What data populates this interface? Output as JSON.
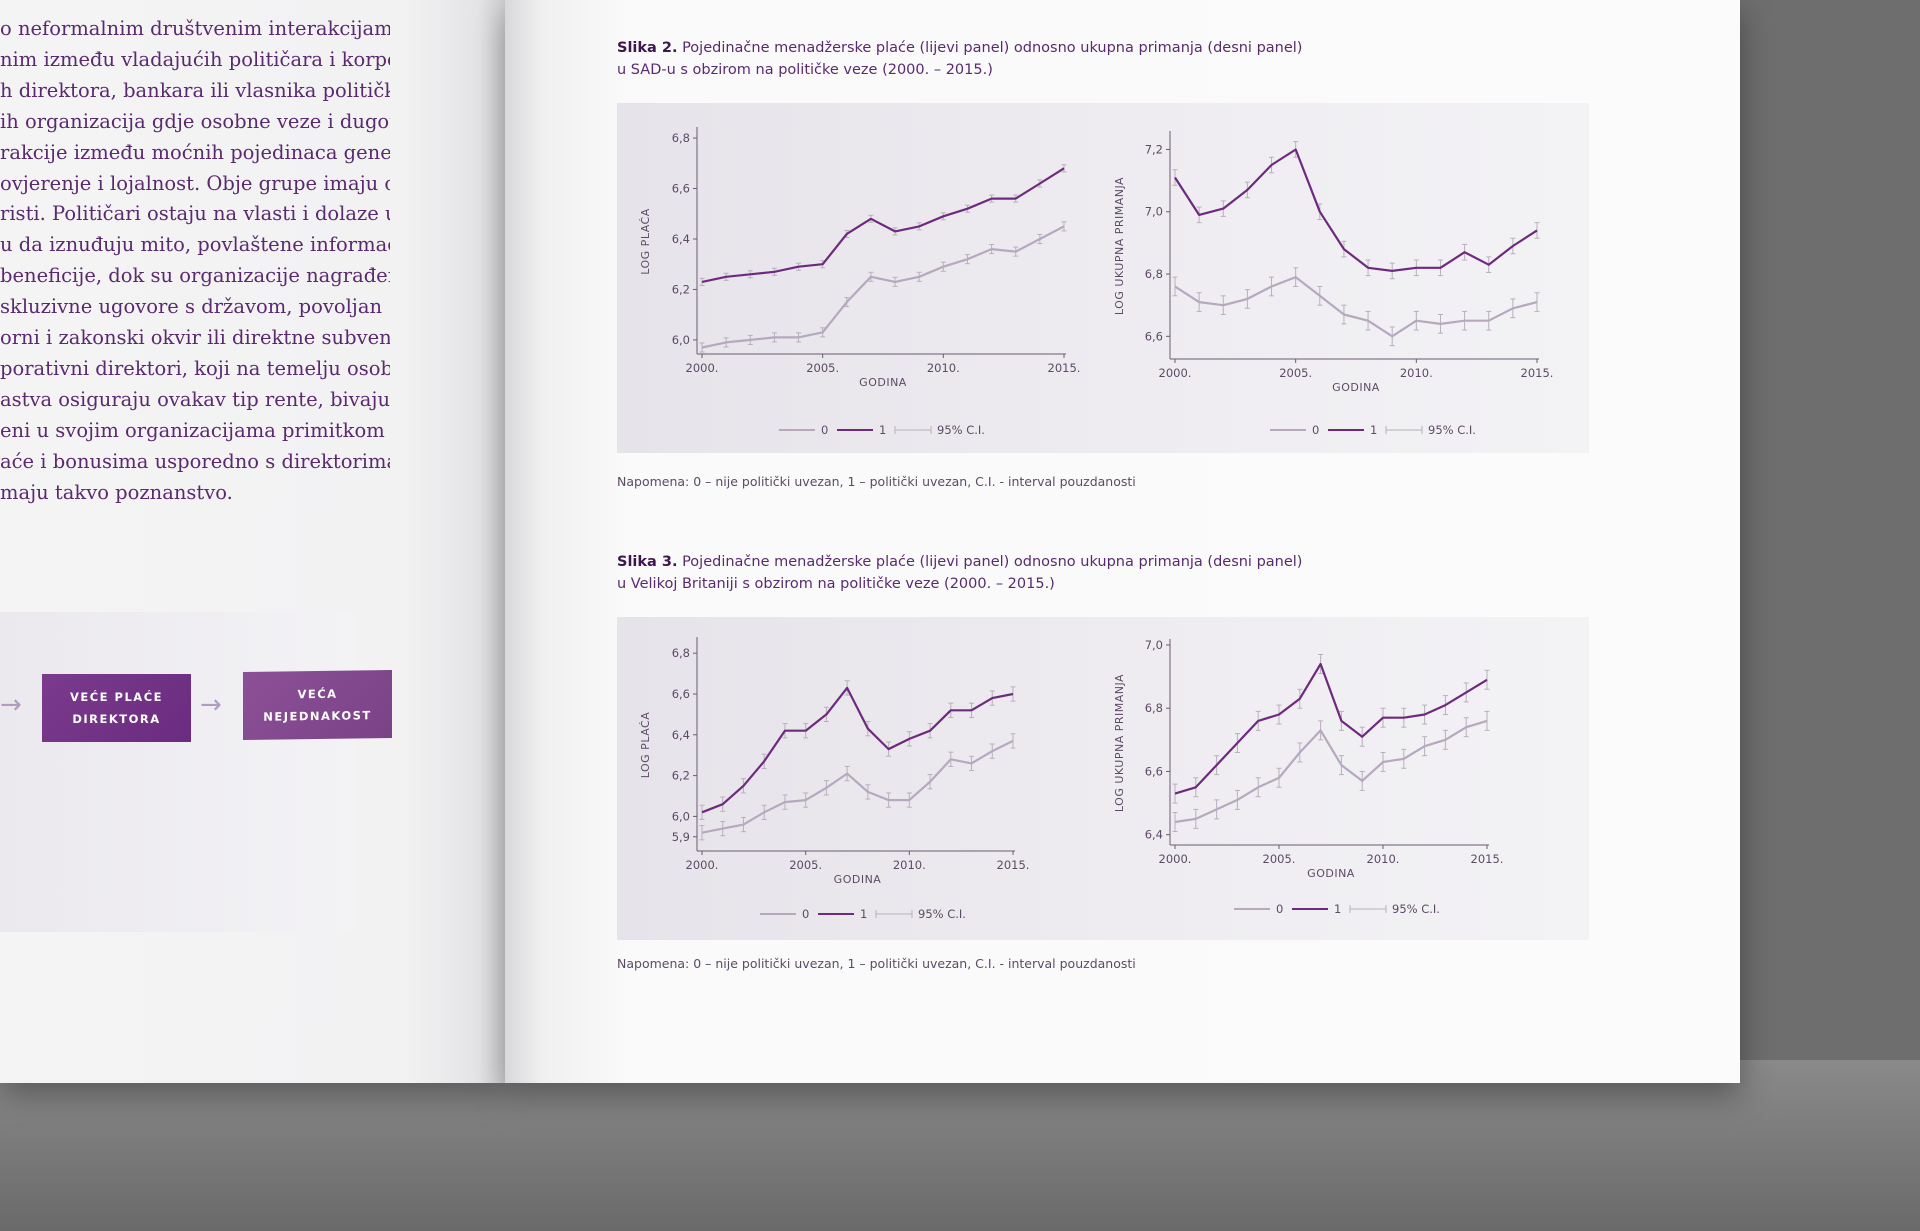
{
  "left_page": {
    "text_lines": [
      "o neformalnim društvenim interakcijama",
      "nim između vladajućih političara i korpo-",
      "h direktora, bankara ili vlasnika politički",
      "ih organizacija gdje osobne veze i dugoroč-",
      "rakcije između moćnih pojedinaca gene-",
      "ovjerenje i lojalnost. Obje grupe imaju od",
      "risti. Političari ostaju na vlasti i dolaze u",
      "u da iznuđuju mito, povlaštene informacije",
      "beneficije, dok su organizacije nagrađene",
      "skluzivne ugovore s državom, povoljan",
      "orni i zakonski okvir ili direktne subvenci-",
      "porativni direktori, koji na temelju osobnog",
      "astva osiguraju ovakav tip rente, bivaju",
      "eni u svojim organizacijama primitkom",
      "aće i bonusima usporedno s direktorima",
      "maju takvo poznanstvo."
    ],
    "diagram": {
      "box1": "VEĆE PLAĆE DIREKTORA",
      "box2": "VEĆA NEJEDNAKOST",
      "arrow": "→"
    }
  },
  "figure2": {
    "caption_bold": "Slika 2.",
    "caption_line1": "Pojedinačne menadžerske plaće (lijevi panel) odnosno ukupna primanja (desni panel)",
    "caption_line2": "u SAD-u s obzirom na političke veze (2000. – 2015.)",
    "note": "Napomena: 0 – nije politički uvezan, 1 – politički uvezan, C.I. - interval pouzdanosti"
  },
  "figure3": {
    "caption_bold": "Slika 3.",
    "caption_line1": "Pojedinačne menadžerske plaće (lijevi panel) odnosno ukupna primanja (desni panel)",
    "caption_line2": "u Velikoj Britaniji s obzirom na političke veze (2000. – 2015.)",
    "note": "Napomena: 0 – nije politički uvezan, 1 – politički uvezan, C.I. - interval pouzdanosti"
  },
  "colors": {
    "series0": "#b5a8bf",
    "series1": "#6e2a7e",
    "text": "#5a2a6e"
  },
  "chart_data": [
    {
      "type": "line",
      "xlabel": "GODINA",
      "ylabel": "LOG PLAĆA",
      "x": [
        2000,
        2001,
        2002,
        2003,
        2004,
        2005,
        2006,
        2007,
        2008,
        2009,
        2010,
        2011,
        2012,
        2013,
        2014,
        2015
      ],
      "xticks": [
        "2000.",
        "2005.",
        "2010.",
        "2015."
      ],
      "ylim": [
        5.96,
        6.82
      ],
      "yticks": [
        "6,0",
        "6,2",
        "6,4",
        "6,6",
        "6,8"
      ],
      "legend": [
        "0",
        "1",
        "95% C.I."
      ],
      "series": [
        {
          "name": "0",
          "values": [
            5.97,
            5.99,
            6.0,
            6.01,
            6.01,
            6.03,
            6.15,
            6.25,
            6.23,
            6.25,
            6.29,
            6.32,
            6.36,
            6.35,
            6.4,
            6.45
          ],
          "ci": 0.018
        },
        {
          "name": "1",
          "values": [
            6.23,
            6.25,
            6.26,
            6.27,
            6.29,
            6.3,
            6.42,
            6.48,
            6.43,
            6.45,
            6.49,
            6.52,
            6.56,
            6.56,
            6.62,
            6.68
          ],
          "ci": 0.014
        }
      ]
    },
    {
      "type": "line",
      "xlabel": "GODINA",
      "ylabel": "LOG UKUPNA PRIMANJA",
      "x": [
        2000,
        2001,
        2002,
        2003,
        2004,
        2005,
        2006,
        2007,
        2008,
        2009,
        2010,
        2011,
        2012,
        2013,
        2014,
        2015
      ],
      "xticks": [
        "2000.",
        "2005.",
        "2010.",
        "2015."
      ],
      "ylim": [
        6.54,
        7.24
      ],
      "yticks": [
        "6,6",
        "6,8",
        "7,0",
        "7,2"
      ],
      "legend": [
        "0",
        "1",
        "95% C.I."
      ],
      "series": [
        {
          "name": "0",
          "values": [
            6.76,
            6.71,
            6.7,
            6.72,
            6.76,
            6.79,
            6.73,
            6.67,
            6.65,
            6.6,
            6.65,
            6.64,
            6.65,
            6.65,
            6.69,
            6.71
          ],
          "ci": 0.03
        },
        {
          "name": "1",
          "values": [
            7.11,
            6.99,
            7.01,
            7.07,
            7.15,
            7.2,
            7.0,
            6.88,
            6.82,
            6.81,
            6.82,
            6.82,
            6.87,
            6.83,
            6.89,
            6.94
          ],
          "ci": 0.025
        }
      ]
    },
    {
      "type": "line",
      "xlabel": "GODINA",
      "ylabel": "LOG PLAĆA",
      "x": [
        2000,
        2001,
        2002,
        2003,
        2004,
        2005,
        2006,
        2007,
        2008,
        2009,
        2010,
        2011,
        2012,
        2013,
        2014,
        2015
      ],
      "xticks": [
        "2000.",
        "2005.",
        "2010.",
        "2015."
      ],
      "ylim": [
        5.85,
        6.85
      ],
      "yticks": [
        "5,9",
        "6,0",
        "6,2",
        "6,4",
        "6,6",
        "6,8"
      ],
      "legend": [
        "0",
        "1",
        "95% C.I."
      ],
      "series": [
        {
          "name": "0",
          "values": [
            5.92,
            5.94,
            5.96,
            6.02,
            6.07,
            6.08,
            6.14,
            6.21,
            6.12,
            6.08,
            6.08,
            6.17,
            6.28,
            6.26,
            6.32,
            6.37
          ],
          "ci": 0.035
        },
        {
          "name": "1",
          "values": [
            6.02,
            6.06,
            6.15,
            6.27,
            6.42,
            6.42,
            6.5,
            6.63,
            6.43,
            6.33,
            6.38,
            6.42,
            6.52,
            6.52,
            6.58,
            6.6
          ],
          "ci": 0.035
        }
      ]
    },
    {
      "type": "line",
      "xlabel": "GODINA",
      "ylabel": "LOG UKUPNA PRIMANJA",
      "x": [
        2000,
        2001,
        2002,
        2003,
        2004,
        2005,
        2006,
        2007,
        2008,
        2009,
        2010,
        2011,
        2012,
        2013,
        2014,
        2015
      ],
      "xticks": [
        "2000.",
        "2005.",
        "2010.",
        "2015."
      ],
      "ylim": [
        6.38,
        7.0
      ],
      "yticks": [
        "6,4",
        "6,6",
        "6,8",
        "7,0"
      ],
      "legend": [
        "0",
        "1",
        "95% C.I."
      ],
      "series": [
        {
          "name": "0",
          "values": [
            6.44,
            6.45,
            6.48,
            6.51,
            6.55,
            6.58,
            6.66,
            6.73,
            6.62,
            6.57,
            6.63,
            6.64,
            6.68,
            6.7,
            6.74,
            6.76
          ],
          "ci": 0.03
        },
        {
          "name": "1",
          "values": [
            6.53,
            6.55,
            6.62,
            6.69,
            6.76,
            6.78,
            6.83,
            6.94,
            6.76,
            6.71,
            6.77,
            6.77,
            6.78,
            6.81,
            6.85,
            6.89
          ],
          "ci": 0.03
        }
      ]
    }
  ]
}
